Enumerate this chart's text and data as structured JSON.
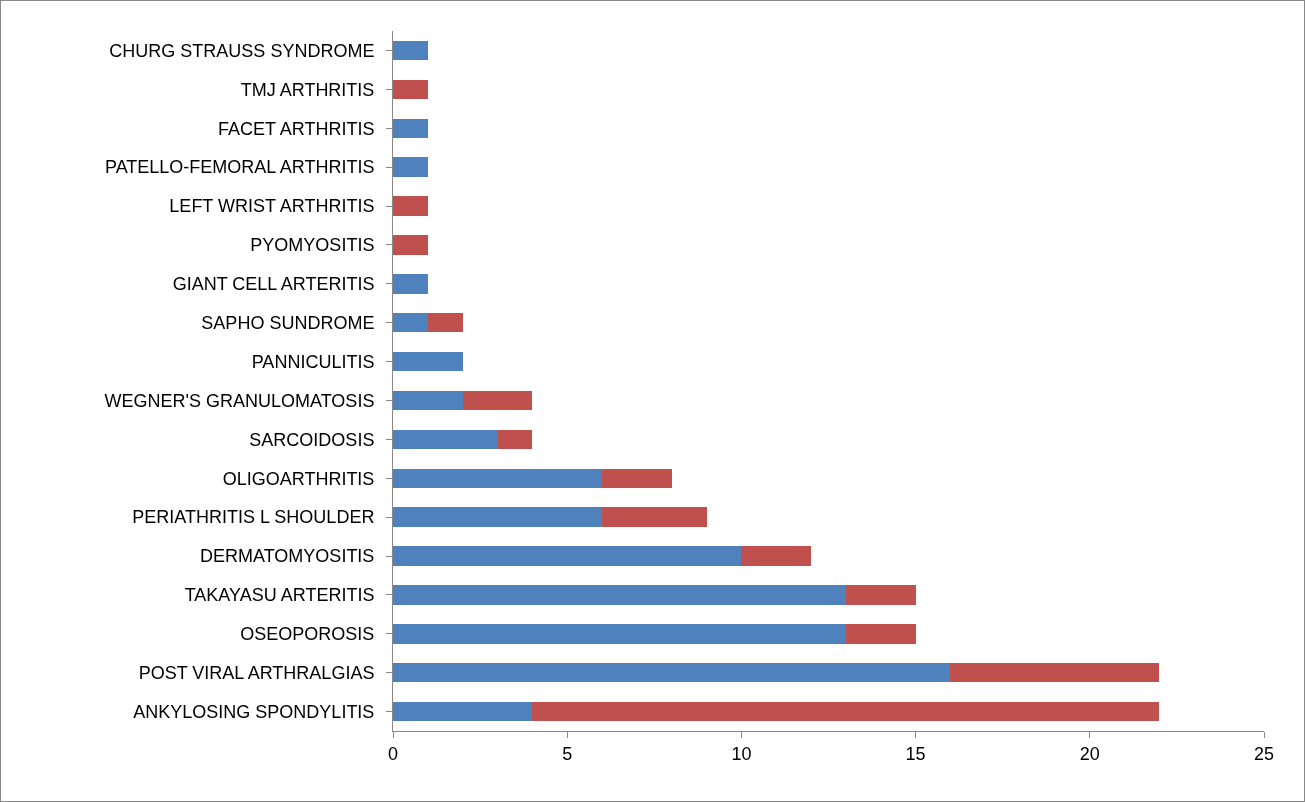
{
  "chart_data": {
    "type": "bar",
    "orientation": "horizontal",
    "stacked": true,
    "categories": [
      "CHURG STRAUSS SYNDROME",
      "TMJ ARTHRITIS",
      "FACET ARTHRITIS",
      "PATELLO-FEMORAL ARTHRITIS",
      "LEFT WRIST ARTHRITIS",
      "PYOMYOSITIS",
      "GIANT CELL ARTERITIS",
      "SAPHO SUNDROME",
      "PANNICULITIS",
      "WEGNER'S GRANULOMATOSIS",
      "SARCOIDOSIS",
      "OLIGOARTHRITIS",
      "PERIATHRITIS L SHOULDER",
      "DERMATOMYOSITIS",
      "TAKAYASU ARTERITIS",
      "OSEOPOROSIS",
      "POST VIRAL ARTHRALGIAS",
      "ANKYLOSING SPONDYLITIS"
    ],
    "series": [
      {
        "color": "#4f81bd",
        "values": [
          1,
          null,
          1,
          1,
          null,
          null,
          1,
          1,
          2,
          2,
          3,
          6,
          6,
          10,
          13,
          13,
          16,
          4
        ]
      },
      {
        "color": "#c0504d",
        "values": [
          null,
          1,
          null,
          null,
          1,
          1,
          null,
          1,
          null,
          2,
          1,
          2,
          3,
          2,
          2,
          2,
          6,
          18
        ]
      }
    ],
    "xlim": [
      0,
      25
    ],
    "xticks": [
      0,
      5,
      10,
      15,
      20,
      25
    ]
  }
}
